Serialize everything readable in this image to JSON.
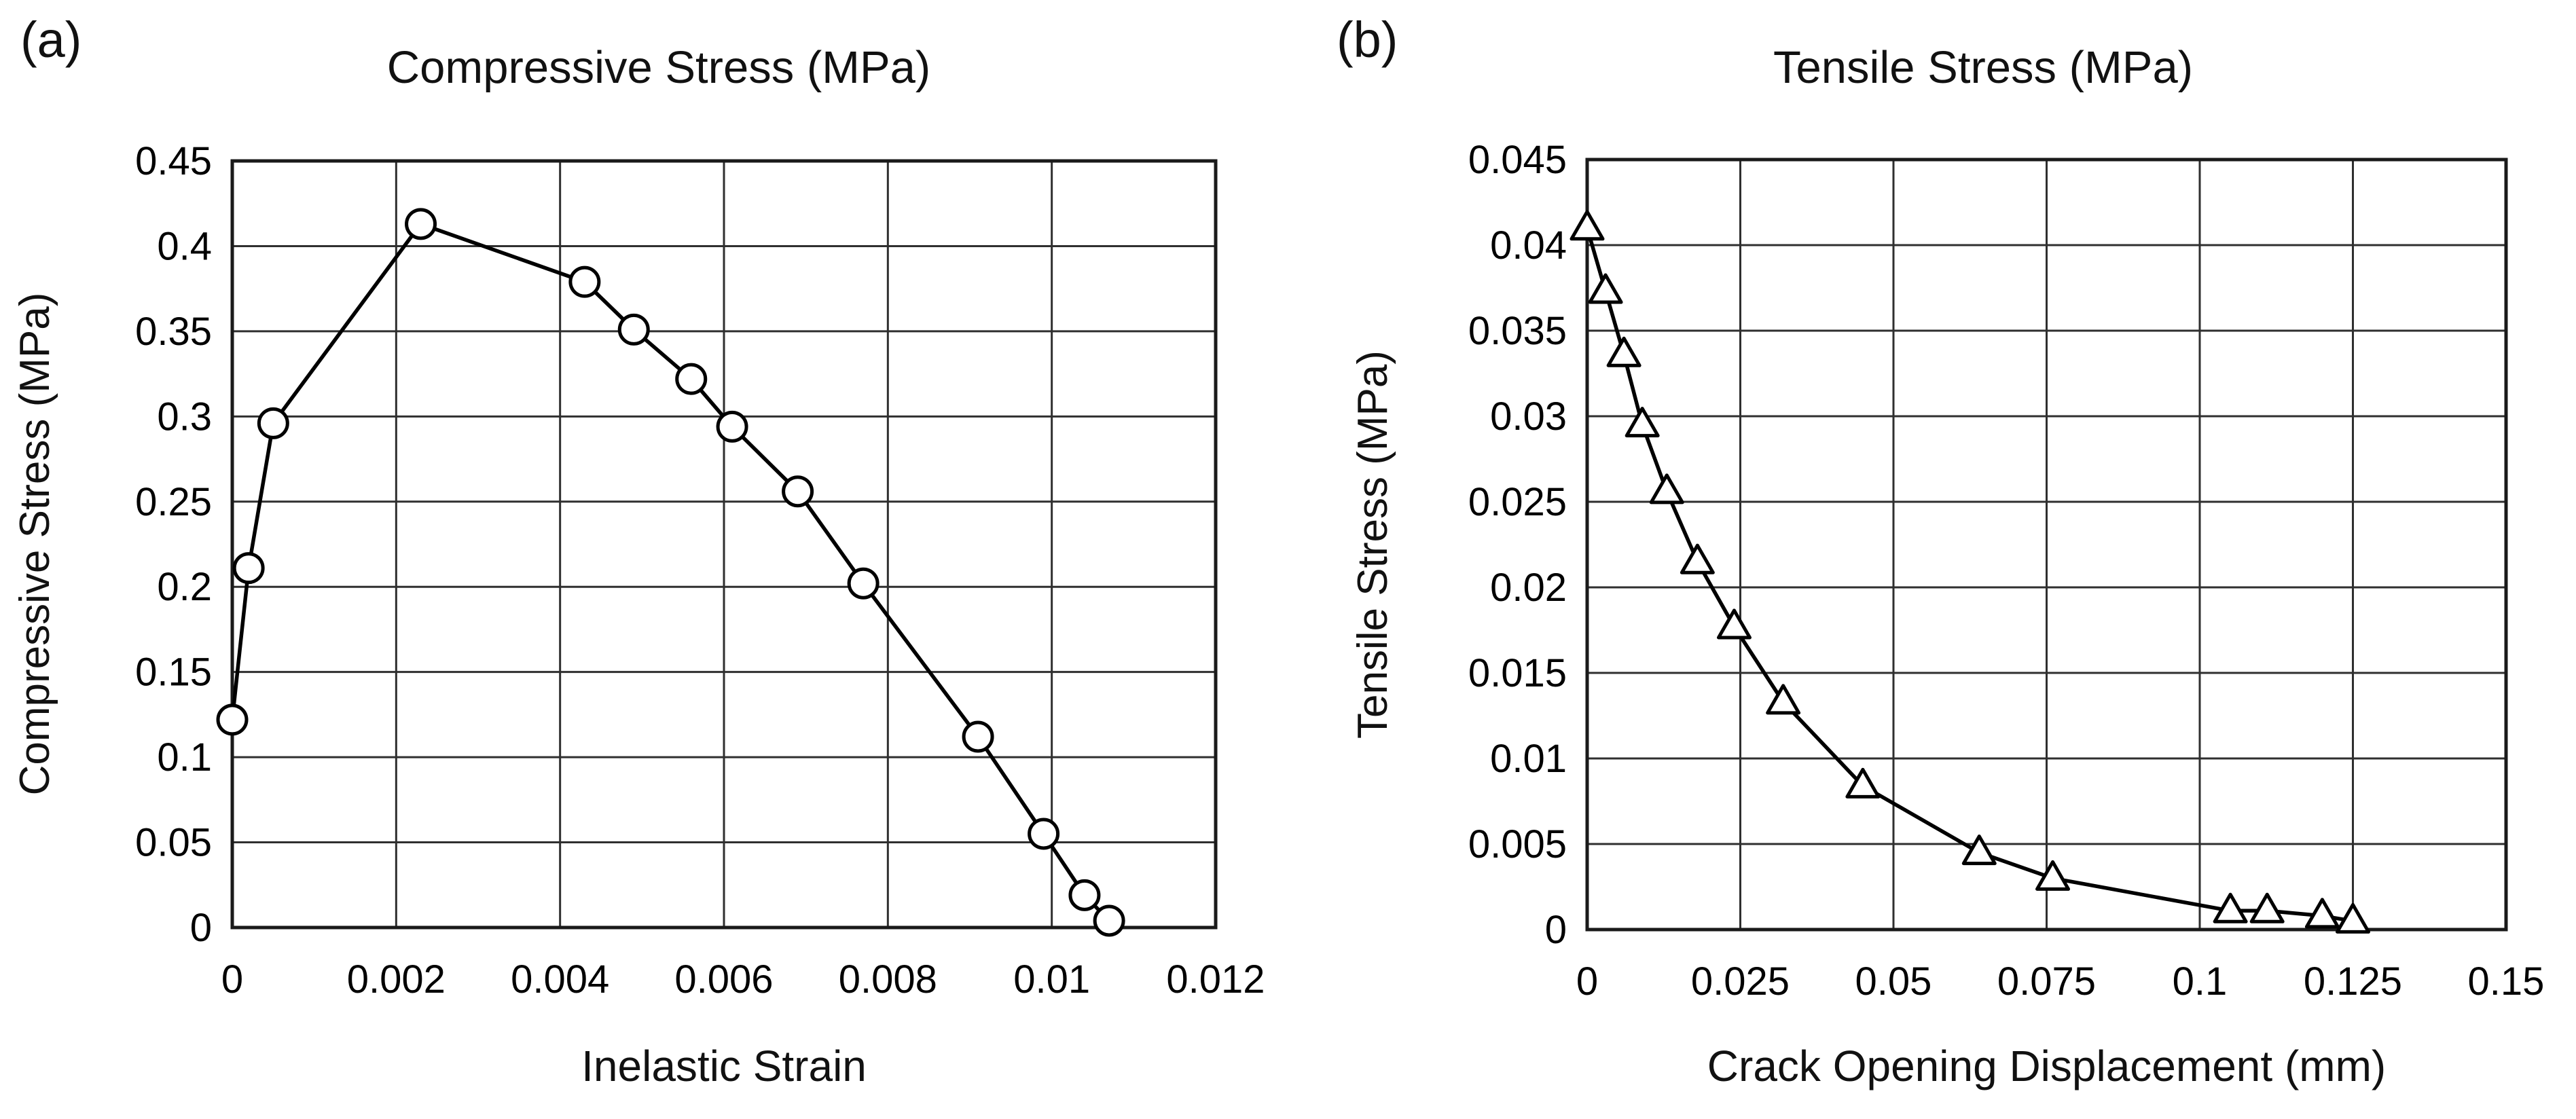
{
  "page": {
    "background": "#ffffff"
  },
  "colors": {
    "text": "#000000",
    "grid": "#2f2f2f",
    "border": "#1a1a1a",
    "line": "#000000",
    "marker_fill": "#ffffff"
  },
  "chart_data": [
    {
      "type": "line",
      "panel_label": "(a)",
      "title": "Compressive Stress (MPa)",
      "xlabel": "Inelastic Strain",
      "ylabel": "Compressive Stress (MPa)",
      "xlim": [
        0,
        0.012
      ],
      "ylim": [
        0,
        0.45
      ],
      "xticks": [
        "0",
        "0.002",
        "0.004",
        "0.006",
        "0.008",
        "0.01",
        "0.012"
      ],
      "yticks": [
        "0.45",
        "0.4",
        "0.35",
        "0.3",
        "0.25",
        "0.2",
        "0.15",
        "0.1",
        "0.05",
        "0"
      ],
      "grid": true,
      "legend": "none",
      "marker": "circle",
      "series": [
        {
          "name": "compressive-stress-curve",
          "points": [
            [
              0,
              0.122
            ],
            [
              0.0002,
              0.211
            ],
            [
              0.0005,
              0.296
            ],
            [
              0.0023,
              0.413
            ],
            [
              0.0043,
              0.379
            ],
            [
              0.0049,
              0.351
            ],
            [
              0.0056,
              0.322
            ],
            [
              0.0061,
              0.294
            ],
            [
              0.0069,
              0.256
            ],
            [
              0.0077,
              0.202
            ],
            [
              0.0091,
              0.112
            ],
            [
              0.0099,
              0.055
            ],
            [
              0.0104,
              0.019
            ],
            [
              0.0107,
              0.004
            ]
          ]
        }
      ]
    },
    {
      "type": "line",
      "panel_label": "(b)",
      "title": "Tensile Stress (MPa)",
      "xlabel": "Crack Opening Displacement (mm)",
      "ylabel": "Tensile Stress (MPa)",
      "xlim": [
        0,
        0.15
      ],
      "ylim": [
        0,
        0.045
      ],
      "xticks": [
        "0",
        "0.025",
        "0.05",
        "0.075",
        "0.1",
        "0.125",
        "0.15"
      ],
      "yticks": [
        "0.045",
        "0.04",
        "0.035",
        "0.03",
        "0.025",
        "0.02",
        "0.015",
        "0.01",
        "0.005",
        "0"
      ],
      "grid": true,
      "legend": "none",
      "marker": "triangle",
      "series": [
        {
          "name": "tensile-stress-curve",
          "points": [
            [
              0,
              0.041
            ],
            [
              0.003,
              0.0373
            ],
            [
              0.006,
              0.0336
            ],
            [
              0.009,
              0.0295
            ],
            [
              0.013,
              0.0256
            ],
            [
              0.018,
              0.0215
            ],
            [
              0.024,
              0.0177
            ],
            [
              0.032,
              0.0133
            ],
            [
              0.045,
              0.0084
            ],
            [
              0.064,
              0.0045
            ],
            [
              0.076,
              0.003
            ],
            [
              0.105,
              0.0011
            ],
            [
              0.111,
              0.0011
            ],
            [
              0.12,
              0.0008
            ],
            [
              0.125,
              0.0005
            ]
          ]
        }
      ]
    }
  ]
}
